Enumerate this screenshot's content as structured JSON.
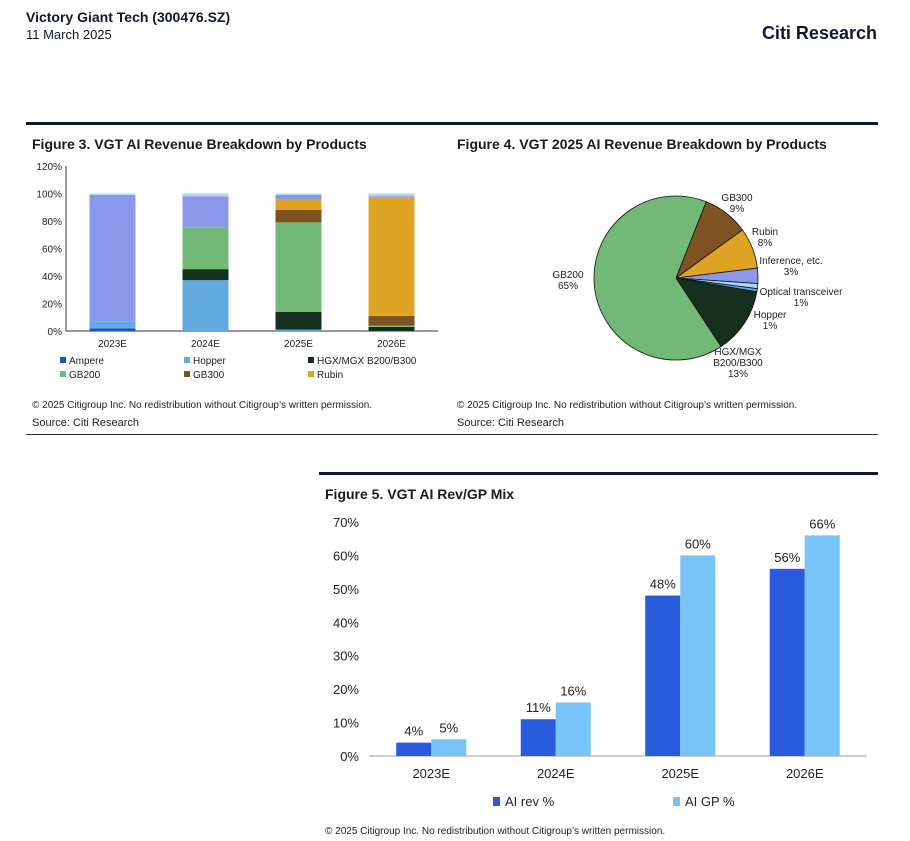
{
  "header": {
    "title": "Victory Giant Tech (300476.SZ)",
    "date": "11 March 2025",
    "brand": "Citi Research"
  },
  "fig3": {
    "title": "Figure 3. VGT AI Revenue Breakdown by Products",
    "copyright": "© 2025 Citigroup Inc. No redistribution without Citigroup’s written permission.",
    "source": "Source: Citi Research"
  },
  "fig4": {
    "title": "Figure 4. VGT 2025 AI Revenue Breakdown by Products",
    "copyright": "© 2025 Citigroup Inc. No redistribution without Citigroup’s written permission.",
    "source": "Source: Citi Research"
  },
  "fig5": {
    "title": "Figure 5. VGT AI Rev/GP Mix",
    "copyright": "© 2025 Citigroup Inc. No redistribution without Citigroup’s written permission."
  },
  "chart_data": [
    {
      "type": "bar",
      "stacked": true,
      "title": "Figure 3. VGT AI Revenue Breakdown by Products",
      "categories": [
        "2023E",
        "2024E",
        "2025E",
        "2026E"
      ],
      "ylim": [
        0,
        120
      ],
      "yticks": [
        "0%",
        "20%",
        "40%",
        "60%",
        "80%",
        "100%",
        "120%"
      ],
      "legend": "bottom",
      "series": [
        {
          "name": "Ampere",
          "color": "#1f4fd1",
          "values": [
            2,
            0,
            0,
            0
          ]
        },
        {
          "name": "Hopper",
          "color": "#62abe0",
          "values": [
            5,
            37,
            1,
            0
          ]
        },
        {
          "name": "HGX/MGX B200/B300",
          "color": "#16301f",
          "values": [
            0,
            8,
            13,
            3
          ]
        },
        {
          "name": "GB200",
          "color": "#72b877",
          "values": [
            0,
            30,
            65,
            1
          ]
        },
        {
          "name": "GB300",
          "color": "#7f5221",
          "values": [
            0,
            0,
            9,
            7
          ]
        },
        {
          "name": "Rubin",
          "color": "#e0a424",
          "values": [
            0,
            0,
            8,
            86
          ]
        },
        {
          "name": "",
          "color": "#8b97e8",
          "values": [
            92,
            23,
            3,
            1
          ]
        },
        {
          "name": "",
          "color": "#a9d8f7",
          "values": [
            1,
            2,
            1,
            2
          ]
        }
      ]
    },
    {
      "type": "pie",
      "title": "Figure 4. VGT 2025 AI Revenue Breakdown by Products",
      "slices": [
        {
          "label": "GB300",
          "value": 9,
          "pct": "9%",
          "color": "#7f5221"
        },
        {
          "label": "Rubin",
          "value": 8,
          "pct": "8%",
          "color": "#e0a424"
        },
        {
          "label": "Inference, etc.",
          "value": 3,
          "pct": "3%",
          "color": "#8b97e8"
        },
        {
          "label": "Optical transceiver",
          "value": 1,
          "pct": "1%",
          "color": "#a9d8f7"
        },
        {
          "label": "Hopper",
          "value": 0.6,
          "pct": "1%",
          "color": "#62abe0"
        },
        {
          "label": "HGX/MGX B200/B300",
          "value": 13,
          "pct": "13%",
          "color": "#16301f"
        },
        {
          "label": "GB200",
          "value": 65,
          "pct": "65%",
          "color": "#72b877"
        }
      ]
    },
    {
      "type": "bar",
      "title": "Figure 5. VGT AI Rev/GP Mix",
      "categories": [
        "2023E",
        "2024E",
        "2025E",
        "2026E"
      ],
      "ylim": [
        0,
        70
      ],
      "yticks": [
        "0%",
        "10%",
        "20%",
        "30%",
        "40%",
        "50%",
        "60%",
        "70%"
      ],
      "legend": "bottom",
      "series": [
        {
          "name": "AI rev  %",
          "color": "#2a5bdc",
          "values": [
            4,
            11,
            48,
            56
          ],
          "labels": [
            "4%",
            "11%",
            "48%",
            "56%"
          ]
        },
        {
          "name": "AI GP  %",
          "color": "#79c3fb",
          "values": [
            5,
            16,
            60,
            66
          ],
          "labels": [
            "5%",
            "16%",
            "60%",
            "66%"
          ]
        }
      ]
    }
  ]
}
